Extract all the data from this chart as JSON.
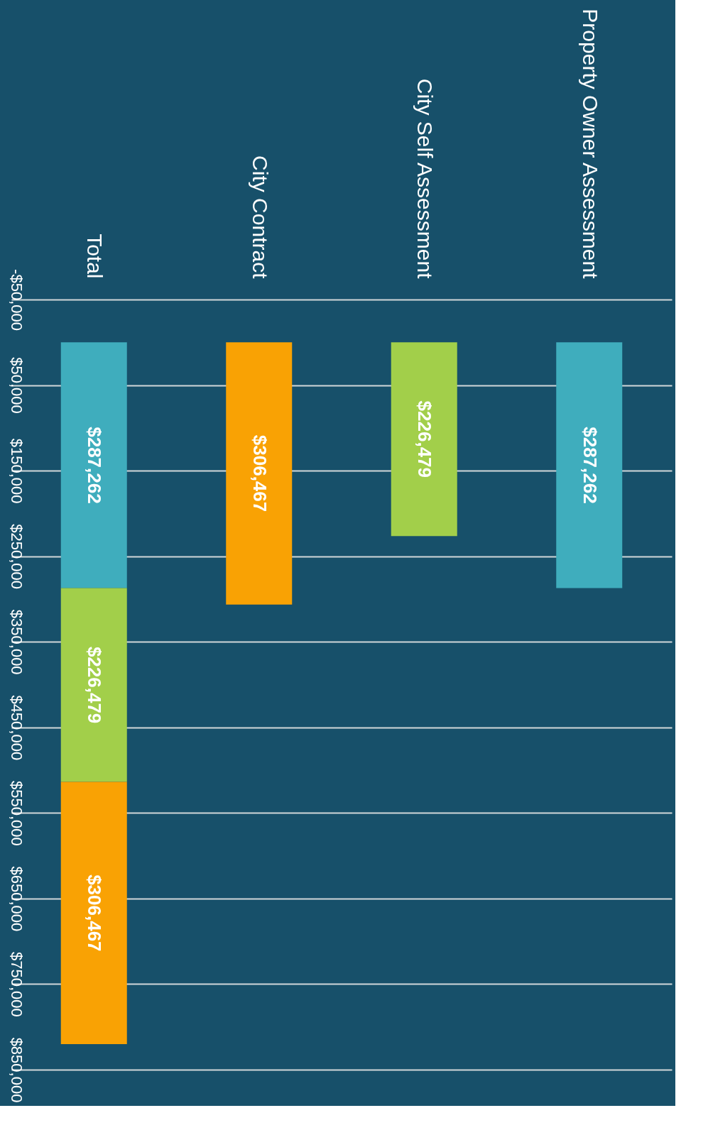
{
  "chart_data": {
    "type": "bar",
    "stacked": true,
    "categories": [
      "Total",
      "City Contract",
      "City Self Assessment",
      "Property Owner Assessment"
    ],
    "series": [
      {
        "color": "#3fadbd",
        "values": [
          287262,
          null,
          null,
          287262
        ],
        "value_labels": [
          "$287,262",
          null,
          null,
          "$287,262"
        ]
      },
      {
        "color": "#a2cf4a",
        "values": [
          226479,
          null,
          226479,
          null
        ],
        "value_labels": [
          "$226,479",
          null,
          "$226,479",
          null
        ]
      },
      {
        "color": "#f9a204",
        "values": [
          306467,
          306467,
          null,
          null
        ],
        "value_labels": [
          "$306,467",
          "$306,467",
          null,
          null
        ]
      }
    ],
    "ylim": [
      850000,
      -50000
    ],
    "yticks": [
      {
        "value": -50000,
        "label": "-$50,000"
      },
      {
        "value": 50000,
        "label": "$50,000"
      },
      {
        "value": 150000,
        "label": "$150,000"
      },
      {
        "value": 250000,
        "label": "$250,000"
      },
      {
        "value": 350000,
        "label": "$350,000"
      },
      {
        "value": 450000,
        "label": "$450,000"
      },
      {
        "value": 550000,
        "label": "$550,000"
      },
      {
        "value": 650000,
        "label": "$650,000"
      },
      {
        "value": 750000,
        "label": "$750,000"
      },
      {
        "value": 850000,
        "label": "$850,000"
      }
    ],
    "grid": "y"
  }
}
